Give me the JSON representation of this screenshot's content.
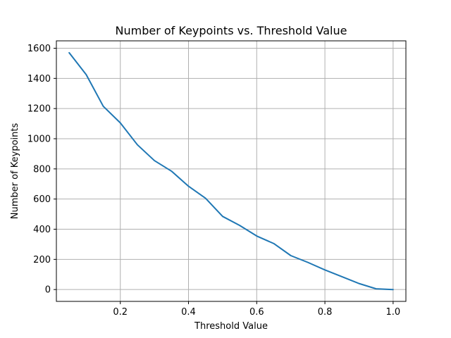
{
  "chart_data": {
    "type": "line",
    "title": "Number of Keypoints vs. Threshold Value",
    "xlabel": "Threshold Value",
    "ylabel": "Number of Keypoints",
    "xlim": [
      0.0125,
      1.0375
    ],
    "ylim": [
      -78.5,
      1649
    ],
    "xticks": [
      0.2,
      0.4,
      0.6,
      0.8,
      1.0
    ],
    "xtick_labels": [
      "0.2",
      "0.4",
      "0.6",
      "0.8",
      "1.0"
    ],
    "yticks": [
      0,
      200,
      400,
      600,
      800,
      1000,
      1200,
      1400,
      1600
    ],
    "ytick_labels": [
      "0",
      "200",
      "400",
      "600",
      "800",
      "1000",
      "1200",
      "1400",
      "1600"
    ],
    "grid": true,
    "color": "#1f77b4",
    "x": [
      0.05,
      0.1,
      0.15,
      0.2,
      0.25,
      0.3,
      0.35,
      0.4,
      0.45,
      0.5,
      0.55,
      0.6,
      0.65,
      0.7,
      0.75,
      0.8,
      0.85,
      0.9,
      0.95,
      1.0
    ],
    "y": [
      1570,
      1425,
      1215,
      1105,
      960,
      855,
      785,
      685,
      605,
      485,
      425,
      355,
      305,
      225,
      180,
      130,
      85,
      40,
      5,
      0
    ]
  }
}
